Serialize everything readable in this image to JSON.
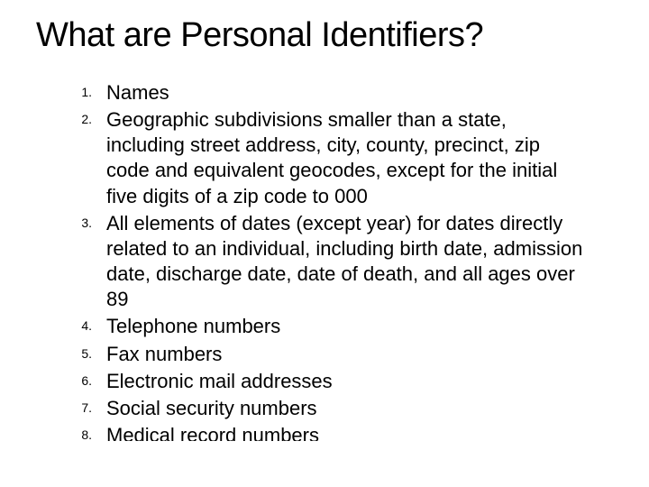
{
  "slide": {
    "title": "What are Personal Identifiers?",
    "items": [
      {
        "num": "1.",
        "text": "Names"
      },
      {
        "num": "2.",
        "text": "Geographic subdivisions smaller than a state, including street address, city, county, precinct, zip code and equivalent geocodes, except for the initial five digits of a zip code to 000"
      },
      {
        "num": "3.",
        "text": "All elements of dates (except year) for dates directly related to an individual, including birth date, admission date, discharge date, date of death, and all ages over 89"
      },
      {
        "num": "4.",
        "text": "Telephone numbers"
      },
      {
        "num": "5.",
        "text": "Fax numbers"
      },
      {
        "num": "6.",
        "text": "Electronic mail addresses"
      },
      {
        "num": "7.",
        "text": "Social security numbers"
      },
      {
        "num": "8.",
        "text": "Medical record numbers"
      }
    ]
  },
  "styling": {
    "background_color": "#ffffff",
    "text_color": "#000000",
    "title_fontsize": 38,
    "body_fontsize": 22,
    "number_fontsize": 14,
    "font_family": "Arial"
  }
}
